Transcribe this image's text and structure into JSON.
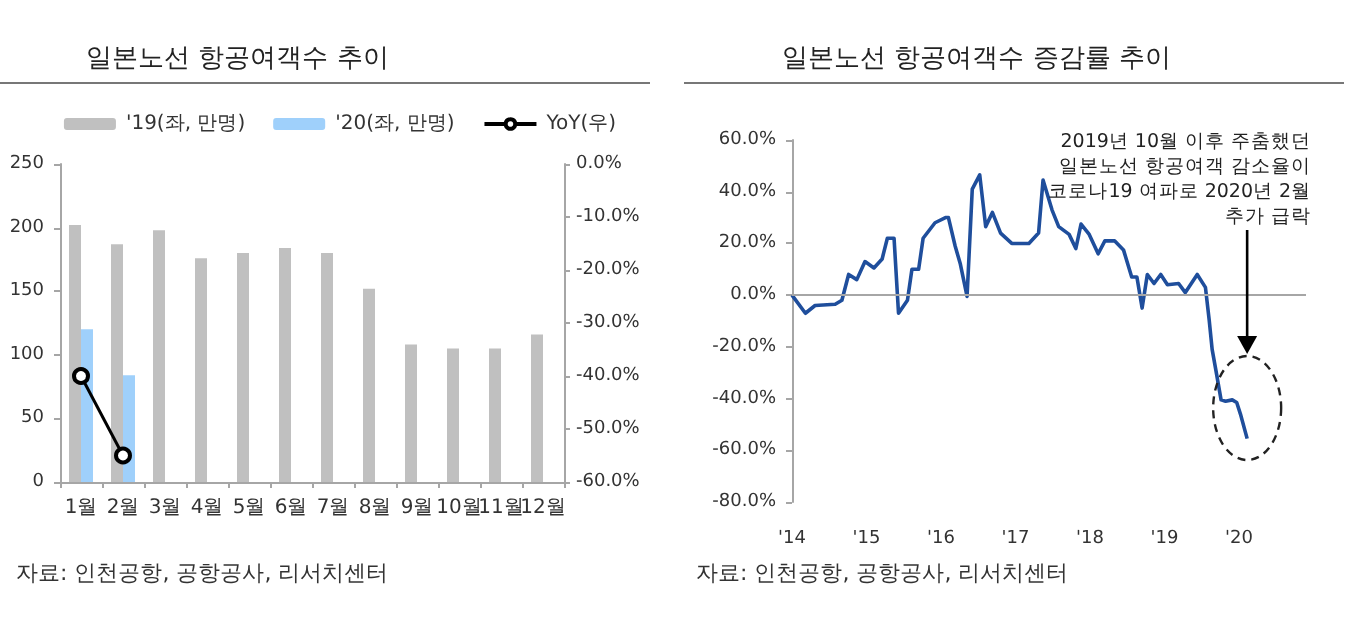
{
  "chart_data": [
    {
      "type": "bar",
      "title": "일본노선 항공여객수 추이",
      "categories": [
        "1월",
        "2월",
        "3월",
        "4월",
        "5월",
        "6월",
        "7월",
        "8월",
        "9월",
        "10월",
        "11월",
        "12월"
      ],
      "series": [
        {
          "name": "'19(좌, 만명)",
          "color": "#c0c0c0",
          "values": [
            202,
            187,
            198,
            176,
            180,
            184,
            180,
            152,
            108,
            105,
            105,
            116
          ]
        },
        {
          "name": "'20(좌, 만명)",
          "color": "#9fd0fb",
          "values": [
            120,
            84,
            null,
            null,
            null,
            null,
            null,
            null,
            null,
            null,
            null,
            null
          ]
        },
        {
          "name": "YoY(우)",
          "type": "line",
          "axis": "y2",
          "color": "#000000",
          "values": [
            -40,
            -55,
            null,
            null,
            null,
            null,
            null,
            null,
            null,
            null,
            null,
            null
          ]
        }
      ],
      "ylim": [
        0,
        250
      ],
      "yticks": [
        0,
        50,
        100,
        150,
        200,
        250
      ],
      "y2lim": [
        -60,
        0
      ],
      "y2ticks": [
        {
          "value": 0,
          "label": "0.0%"
        },
        {
          "value": -10,
          "label": "-10.0%"
        },
        {
          "value": -20,
          "label": "-20.0%"
        },
        {
          "value": -30,
          "label": "-30.0%"
        },
        {
          "value": -40,
          "label": "-40.0%"
        },
        {
          "value": -50,
          "label": "-50.0%"
        },
        {
          "value": -60,
          "label": "-60.0%"
        }
      ],
      "legend": "top",
      "marker": "circle",
      "grid": false,
      "annotations": [
        "자료: 인천공항, 공항공사, 리서치센터"
      ]
    },
    {
      "type": "line",
      "title": "일본노선 항공여객수 증감률 추이",
      "color": "#1f4e9c",
      "x": [
        2014.0,
        2014.18,
        2014.31,
        2014.58,
        2014.67,
        2014.76,
        2014.87,
        2014.98,
        2015.1,
        2015.21,
        2015.28,
        2015.37,
        2015.43,
        2015.55,
        2015.61,
        2015.7,
        2015.76,
        2015.92,
        2016.06,
        2016.1,
        2016.19,
        2016.26,
        2016.35,
        2016.42,
        2016.52,
        2016.6,
        2016.69,
        2016.8,
        2016.95,
        2017.18,
        2017.31,
        2017.37,
        2017.49,
        2017.58,
        2017.72,
        2017.81,
        2017.88,
        2017.99,
        2018.11,
        2018.2,
        2018.33,
        2018.45,
        2018.56,
        2018.63,
        2018.7,
        2018.77,
        2018.86,
        2018.95,
        2019.04,
        2019.19,
        2019.28,
        2019.44,
        2019.55,
        2019.6,
        2019.64,
        2019.69,
        2019.76,
        2019.82,
        2019.91,
        2019.97,
        2020.02,
        2020.11
      ],
      "values": [
        0,
        -7,
        -4,
        -3.5,
        -2,
        8,
        6,
        13,
        10.5,
        14,
        22,
        22,
        -7,
        -2,
        10,
        10,
        22,
        28,
        30,
        30,
        19,
        12,
        -0.5,
        41,
        46.5,
        26.5,
        32,
        24,
        20,
        20,
        24,
        44.5,
        33,
        26.5,
        23.5,
        18,
        27.5,
        23.5,
        16,
        21,
        21,
        17.5,
        7,
        7,
        -5,
        8,
        4.5,
        8,
        4,
        4.5,
        1,
        8,
        3,
        -9.5,
        -21,
        -29,
        -40.5,
        -41,
        -40.5,
        -41.5,
        -46,
        -55.5
      ],
      "xlim": [
        2014,
        2020.9
      ],
      "xticks": [
        {
          "value": 2014,
          "label": "'14"
        },
        {
          "value": 2015,
          "label": "'15"
        },
        {
          "value": 2016,
          "label": "'16"
        },
        {
          "value": 2017,
          "label": "'17"
        },
        {
          "value": 2018,
          "label": "'18"
        },
        {
          "value": 2019,
          "label": "'19"
        },
        {
          "value": 2020,
          "label": "'20"
        }
      ],
      "ylim": [
        -80,
        60
      ],
      "yticks": [
        {
          "value": -80,
          "label": "-80.0%"
        },
        {
          "value": -60,
          "label": "-60.0%"
        },
        {
          "value": -40,
          "label": "-40.0%"
        },
        {
          "value": -20,
          "label": "-20.0%"
        },
        {
          "value": 0,
          "label": "0.0%"
        },
        {
          "value": 20,
          "label": "20.0%"
        },
        {
          "value": 40,
          "label": "40.0%"
        },
        {
          "value": 60,
          "label": "60.0%"
        }
      ],
      "ref_lines": [
        {
          "axis": "y",
          "value": 0,
          "color": "#a6a6a6"
        }
      ],
      "marker": "none",
      "grid": false,
      "annotations": [
        "2019년 10월 이후 주춤했던\n일본노선 항공여객 감소율이\n코로나19 여파로 2020년 2월\n추가 급락",
        "자료: 인천공항, 공항공사, 리서치센터"
      ]
    }
  ]
}
